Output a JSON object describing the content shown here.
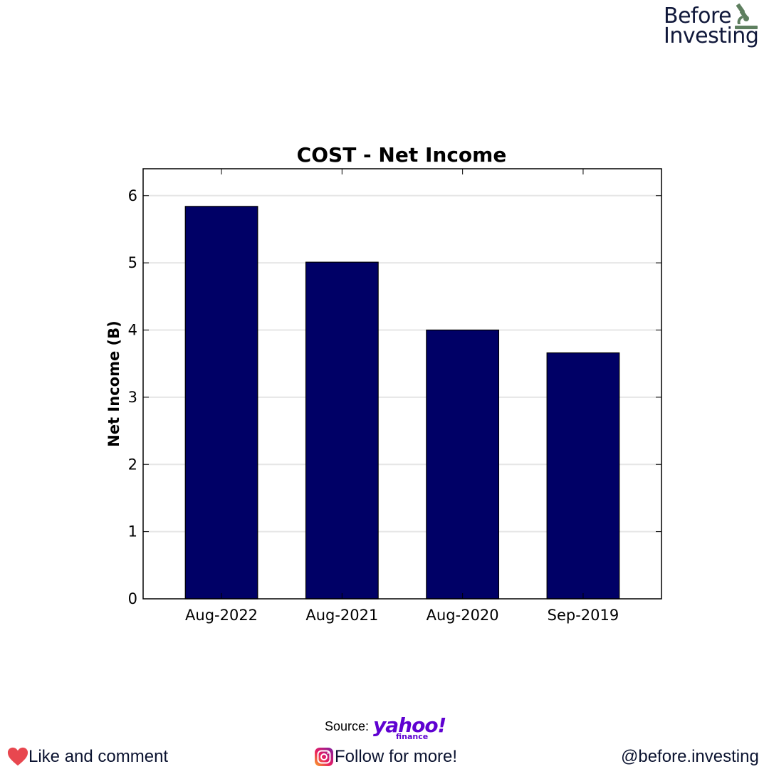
{
  "brand": {
    "line1": "Before",
    "line2": "Investing",
    "icon": "microscope-icon"
  },
  "chart_data": {
    "type": "bar",
    "title": "COST - Net Income",
    "xlabel": "",
    "ylabel": "Net Income (B)",
    "categories": [
      "Aug-2022",
      "Aug-2021",
      "Aug-2020",
      "Sep-2019"
    ],
    "values": [
      5.84,
      5.01,
      4.0,
      3.66
    ],
    "ylim": [
      0,
      6.4
    ],
    "yticks": [
      0,
      1,
      2,
      3,
      4,
      5,
      6
    ],
    "grid": true,
    "bar_color": "#000066"
  },
  "footer": {
    "source_label": "Source:",
    "source_logo": "yahoo!",
    "source_logo_sub": "finance",
    "like_text": "Like and comment",
    "follow_text": "Follow for more!",
    "handle": "@before.investing",
    "heart_icon": "heart-icon",
    "instagram_icon": "instagram-icon",
    "heart_color": "#e8474f",
    "yahoo_color": "#5f01d1"
  }
}
